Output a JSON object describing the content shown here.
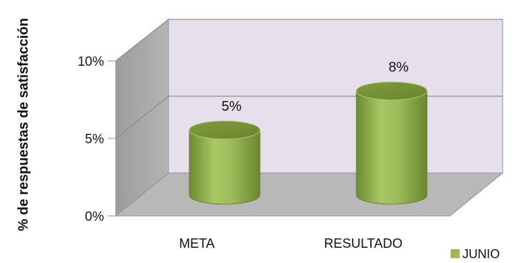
{
  "chart_data": {
    "type": "bar",
    "style": "3d-cylinder",
    "categories": [
      "META",
      "RESULTADO"
    ],
    "series": [
      {
        "name": "JUNIO",
        "values": [
          5,
          8
        ],
        "color": "#9bbb59"
      }
    ],
    "data_labels": [
      "5%",
      "8%"
    ],
    "ylabel": "% de respuestas de satisfacción",
    "ylim": [
      0,
      10
    ],
    "y_ticks": [
      0,
      5,
      10
    ],
    "y_tick_labels": [
      "0%",
      "5%",
      "10%"
    ],
    "grid": true,
    "legend_position": "bottom-right",
    "colors": {
      "back_wall": "#e6e0ec",
      "side_wall": "#aaaaaa",
      "floor": "#b8b8b8",
      "gridline": "#8c8c8c"
    }
  }
}
